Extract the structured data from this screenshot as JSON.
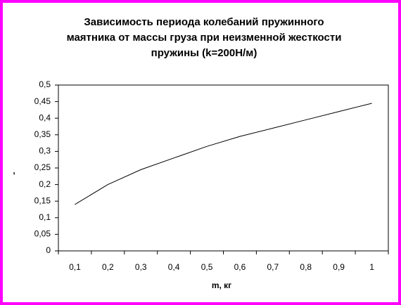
{
  "chart_data": {
    "type": "line",
    "title": [
      "Зависимость периода колебаний пружинного",
      "маятника от массы груза при неизменной жесткости",
      "пружины (k=200Н/м)"
    ],
    "x_label": "m, кг",
    "y_label": ",",
    "categories": [
      "0,1",
      "0,2",
      "0,3",
      "0,4",
      "0,5",
      "0,6",
      "0,7",
      "0,8",
      "0,9",
      "1"
    ],
    "series": [
      {
        "color": "#000000",
        "values": [
          0.14,
          0.2,
          0.245,
          0.28,
          0.315,
          0.345,
          0.37,
          0.395,
          0.42,
          0.445
        ]
      }
    ],
    "ylim": [
      0,
      0.5
    ],
    "yticks": [
      0,
      {
        "value": 0.05,
        "label": "0,05"
      },
      {
        "value": 0.1,
        "label": "0,1"
      },
      {
        "value": 0.15,
        "label": "0,15"
      },
      {
        "value": 0.2,
        "label": "0,2"
      },
      {
        "value": 0.25,
        "label": "0,25"
      },
      {
        "value": 0.3,
        "label": "0,3"
      },
      {
        "value": 0.35,
        "label": "0,35"
      },
      {
        "value": 0.4,
        "label": "0,4"
      },
      {
        "value": 0.45,
        "label": "0,45"
      },
      {
        "value": 0.5,
        "label": "0,5"
      }
    ],
    "grid": false
  }
}
